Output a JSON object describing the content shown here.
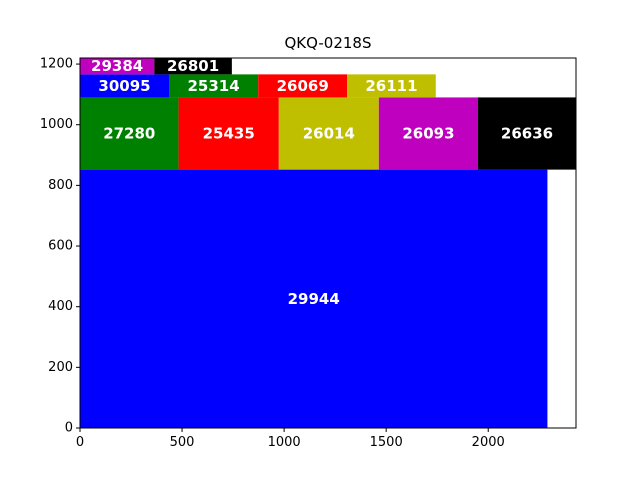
{
  "chart_data": {
    "type": "treemap",
    "title": "QKQ-0218S",
    "xlabel": "",
    "ylabel": "",
    "xlim": [
      0,
      2430
    ],
    "ylim": [
      0,
      1220
    ],
    "x_ticks": [
      0,
      500,
      1000,
      1500,
      2000
    ],
    "y_ticks": [
      0,
      200,
      400,
      600,
      800,
      1000,
      1200
    ],
    "grid": false,
    "legend": "none",
    "rectangles": [
      {
        "label": "29944",
        "value": 29944,
        "x0": 0,
        "x1": 2290,
        "y0": 0,
        "y1": 852,
        "color": "#0000ff"
      },
      {
        "label": "27280",
        "value": 27280,
        "x0": 0,
        "x1": 483,
        "y0": 852,
        "y1": 1090,
        "color": "#008000"
      },
      {
        "label": "25435",
        "value": 25435,
        "x0": 483,
        "x1": 974,
        "y0": 852,
        "y1": 1090,
        "color": "#ff0000"
      },
      {
        "label": "26014",
        "value": 26014,
        "x0": 974,
        "x1": 1464,
        "y0": 852,
        "y1": 1090,
        "color": "#bfbf00"
      },
      {
        "label": "26093",
        "value": 26093,
        "x0": 1464,
        "x1": 1950,
        "y0": 852,
        "y1": 1090,
        "color": "#bf00bf"
      },
      {
        "label": "26636",
        "value": 26636,
        "x0": 1950,
        "x1": 2430,
        "y0": 852,
        "y1": 1090,
        "color": "#000000"
      },
      {
        "label": "30095",
        "value": 30095,
        "x0": 0,
        "x1": 436,
        "y0": 1090,
        "y1": 1166,
        "color": "#0000ff"
      },
      {
        "label": "25314",
        "value": 25314,
        "x0": 436,
        "x1": 873,
        "y0": 1090,
        "y1": 1166,
        "color": "#008000"
      },
      {
        "label": "26069",
        "value": 26069,
        "x0": 873,
        "x1": 1309,
        "y0": 1090,
        "y1": 1166,
        "color": "#ff0000"
      },
      {
        "label": "26111",
        "value": 26111,
        "x0": 1309,
        "x1": 1743,
        "y0": 1090,
        "y1": 1166,
        "color": "#bfbf00"
      },
      {
        "label": "29384",
        "value": 29384,
        "x0": 0,
        "x1": 364,
        "y0": 1166,
        "y1": 1220,
        "color": "#bf00bf"
      },
      {
        "label": "26801",
        "value": 26801,
        "x0": 364,
        "x1": 744,
        "y0": 1166,
        "y1": 1220,
        "color": "#000000"
      }
    ]
  }
}
